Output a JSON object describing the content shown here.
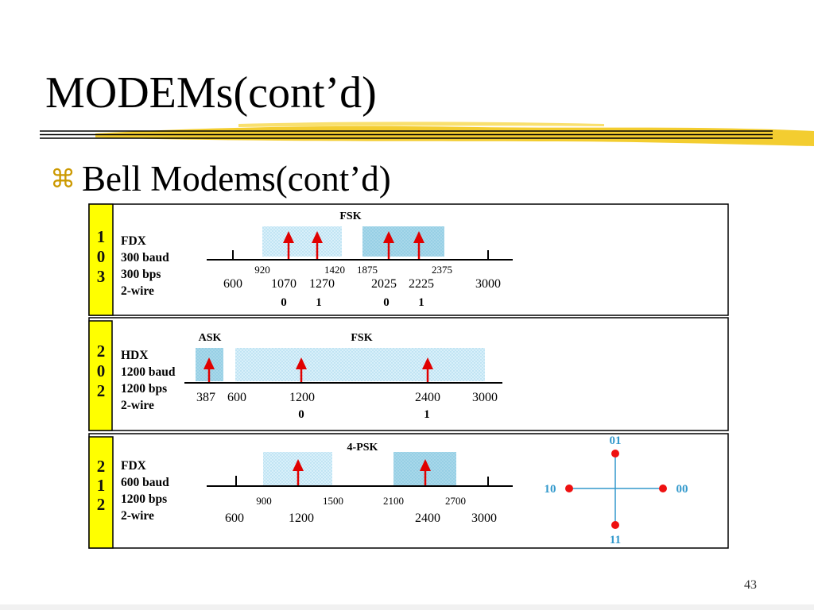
{
  "slide": {
    "title": "MODEMs(cont’d)",
    "bullet_symbol": "⌘",
    "bullet_text": "Bell Modems(cont’d)",
    "page_number": "43"
  },
  "colors": {
    "bullet": "#cc9900",
    "strip": "#ffff00",
    "arrow": "#e00000",
    "band_light": "#d9f0fa",
    "band_dark": "#a8d8ea",
    "constellation": "#3399cc",
    "constellation_point": "#ee1111",
    "rule_yellow": "#f2c81a"
  },
  "panels": [
    {
      "digits": [
        "1",
        "0",
        "3"
      ],
      "specs": [
        "FDX",
        "300 baud",
        "300 bps",
        "2-wire"
      ],
      "headers": [
        "FSK"
      ],
      "band_edges": [
        "920",
        "1420",
        "1875",
        "2375"
      ],
      "frequencies": [
        "600",
        "1070",
        "1270",
        "2025",
        "2225",
        "3000"
      ],
      "bits": [
        "0",
        "1",
        "0",
        "1"
      ]
    },
    {
      "digits": [
        "2",
        "0",
        "2"
      ],
      "specs": [
        "HDX",
        "1200 baud",
        "1200 bps",
        "2-wire"
      ],
      "headers": [
        "ASK",
        "FSK"
      ],
      "frequencies": [
        "387",
        "600",
        "1200",
        "2400",
        "3000"
      ],
      "bits": [
        "0",
        "1"
      ]
    },
    {
      "digits": [
        "2",
        "1",
        "2"
      ],
      "specs": [
        "FDX",
        "600 baud",
        "1200 bps",
        "2-wire"
      ],
      "headers": [
        "4-PSK"
      ],
      "band_edges": [
        "900",
        "1500",
        "2100",
        "2700"
      ],
      "frequencies": [
        "600",
        "1200",
        "2400",
        "3000"
      ],
      "constellation": {
        "top": "01",
        "left": "10",
        "right": "00",
        "bottom": "11"
      }
    }
  ]
}
